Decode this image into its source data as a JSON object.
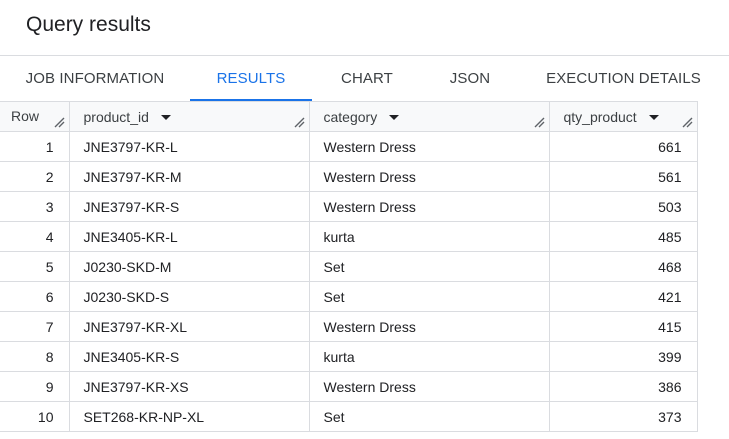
{
  "title": "Query results",
  "tabs": [
    {
      "label": "JOB INFORMATION"
    },
    {
      "label": "RESULTS"
    },
    {
      "label": "CHART"
    },
    {
      "label": "JSON"
    },
    {
      "label": "EXECUTION DETAILS"
    }
  ],
  "active_tab": "RESULTS",
  "accent_color": "#1a73e8",
  "table": {
    "headers": [
      "Row",
      "product_id",
      "category",
      "qty_product"
    ],
    "rows": [
      {
        "row": "1",
        "product_id": "JNE3797-KR-L",
        "category": "Western Dress",
        "qty_product": "661"
      },
      {
        "row": "2",
        "product_id": "JNE3797-KR-M",
        "category": "Western Dress",
        "qty_product": "561"
      },
      {
        "row": "3",
        "product_id": "JNE3797-KR-S",
        "category": "Western Dress",
        "qty_product": "503"
      },
      {
        "row": "4",
        "product_id": "JNE3405-KR-L",
        "category": "kurta",
        "qty_product": "485"
      },
      {
        "row": "5",
        "product_id": "J0230-SKD-M",
        "category": "Set",
        "qty_product": "468"
      },
      {
        "row": "6",
        "product_id": "J0230-SKD-S",
        "category": "Set",
        "qty_product": "421"
      },
      {
        "row": "7",
        "product_id": "JNE3797-KR-XL",
        "category": "Western Dress",
        "qty_product": "415"
      },
      {
        "row": "8",
        "product_id": "JNE3405-KR-S",
        "category": "kurta",
        "qty_product": "399"
      },
      {
        "row": "9",
        "product_id": "JNE3797-KR-XS",
        "category": "Western Dress",
        "qty_product": "386"
      },
      {
        "row": "10",
        "product_id": "SET268-KR-NP-XL",
        "category": "Set",
        "qty_product": "373"
      }
    ]
  }
}
